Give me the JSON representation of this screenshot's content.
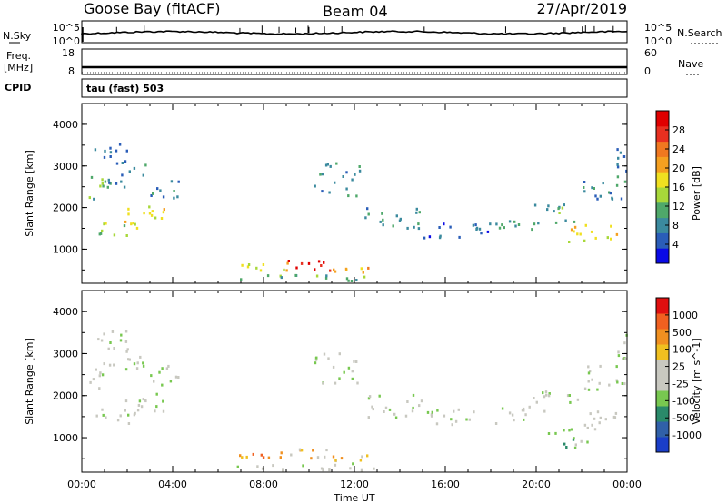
{
  "header": {
    "station": "Goose Bay (fitACF)",
    "beam": "Beam 04",
    "date": "27/Apr/2019"
  },
  "noise_panel": {
    "left_label": "N.Sky",
    "right_label": "N.Search",
    "left_ticks": [
      "10^5",
      "10^0"
    ],
    "right_ticks": [
      "10^5",
      "10^0"
    ]
  },
  "freq_panel": {
    "left_label_line1": "Freq.",
    "left_label_line2": "[MHz]",
    "right_label": "Nave",
    "left_ticks": [
      "18",
      "8"
    ],
    "right_ticks": [
      "60",
      "0"
    ]
  },
  "cpid": {
    "label": "CPID",
    "value": "tau (fast) 503"
  },
  "time_axis": {
    "title": "Time UT",
    "ticks": [
      "00:00",
      "04:00",
      "08:00",
      "12:00",
      "16:00",
      "20:00",
      "00:00"
    ]
  },
  "chart_data": [
    {
      "type": "heatmap",
      "title": "",
      "parameter": "Power",
      "ylabel": "Slant Range [km]",
      "yticks": [
        "1000",
        "2000",
        "3000",
        "4000"
      ],
      "ylim_km": [
        180,
        4500
      ],
      "xlim_hours": [
        0,
        24
      ],
      "colorbar": {
        "label": "Power [dB]",
        "ticks": [
          "4",
          "8",
          "12",
          "16",
          "20",
          "24",
          "28"
        ],
        "colors": [
          "#0a0ae6",
          "#2a5db8",
          "#3b8a9e",
          "#4fa86a",
          "#a8d83a",
          "#f0e020",
          "#f5a020",
          "#f07820",
          "#e83020",
          "#e00000"
        ]
      },
      "regions": [
        {
          "t": [
            0.3,
            2.5
          ],
          "r": [
            1350,
            1700
          ],
          "level": 4
        },
        {
          "t": [
            1.8,
            3.6
          ],
          "r": [
            1550,
            2100
          ],
          "level": 5
        },
        {
          "t": [
            0.3,
            1.0
          ],
          "r": [
            2200,
            2900
          ],
          "level": 3
        },
        {
          "t": [
            1.0,
            2.8
          ],
          "r": [
            2500,
            3200
          ],
          "level": 2
        },
        {
          "t": [
            3.0,
            4.3
          ],
          "r": [
            2250,
            2750
          ],
          "level": 2
        },
        {
          "t": [
            0.5,
            2.0
          ],
          "r": [
            3200,
            3600
          ],
          "level": 1
        },
        {
          "t": [
            7.0,
            9.2
          ],
          "r": [
            470,
            700
          ],
          "level": 5
        },
        {
          "t": [
            9.0,
            11.0
          ],
          "r": [
            470,
            760
          ],
          "level": 9
        },
        {
          "t": [
            11.0,
            12.6
          ],
          "r": [
            470,
            650
          ],
          "level": 6
        },
        {
          "t": [
            6.8,
            13.0
          ],
          "r": [
            250,
            420
          ],
          "level": 3
        },
        {
          "t": [
            10.2,
            12.2
          ],
          "r": [
            2300,
            3100
          ],
          "level": 2
        },
        {
          "t": [
            12.2,
            15.0
          ],
          "r": [
            1500,
            2050
          ],
          "level": 2
        },
        {
          "t": [
            15.0,
            18.2
          ],
          "r": [
            1300,
            1700
          ],
          "level": 1
        },
        {
          "t": [
            18.0,
            20.0
          ],
          "r": [
            1450,
            1800
          ],
          "level": 3
        },
        {
          "t": [
            19.8,
            21.8
          ],
          "r": [
            1650,
            2150
          ],
          "level": 3
        },
        {
          "t": [
            21.4,
            23.9
          ],
          "r": [
            1200,
            1650
          ],
          "level": 5
        },
        {
          "t": [
            22.0,
            24.0
          ],
          "r": [
            2100,
            2800
          ],
          "level": 2
        },
        {
          "t": [
            23.5,
            24.0
          ],
          "r": [
            2900,
            3500
          ],
          "level": 2
        }
      ]
    },
    {
      "type": "heatmap",
      "title": "",
      "parameter": "Velocity",
      "ylabel": "Slant Range [km]",
      "yticks": [
        "1000",
        "2000",
        "3000",
        "4000"
      ],
      "ylim_km": [
        180,
        4500
      ],
      "xlim_hours": [
        0,
        24
      ],
      "colorbar": {
        "label": "Velocity [m s^-1]",
        "ticks": [
          "1000",
          "500",
          "100",
          "25",
          "-25",
          "-100",
          "-500",
          "-1000"
        ],
        "colors": [
          "#1a3ec8",
          "#3060a8",
          "#2a8a6a",
          "#78c850",
          "#c8c8c0",
          "#c8c8c0",
          "#f0c020",
          "#f09020",
          "#f06020",
          "#e01010"
        ]
      },
      "regions": [
        {
          "t": [
            0.3,
            2.5
          ],
          "r": [
            1350,
            1700
          ],
          "level": 4
        },
        {
          "t": [
            1.8,
            3.6
          ],
          "r": [
            1550,
            2100
          ],
          "level": 4
        },
        {
          "t": [
            0.3,
            1.0
          ],
          "r": [
            2200,
            2900
          ],
          "level": 4
        },
        {
          "t": [
            1.0,
            2.8
          ],
          "r": [
            2500,
            3200
          ],
          "level": 4
        },
        {
          "t": [
            3.0,
            4.3
          ],
          "r": [
            2250,
            2750
          ],
          "level": 4
        },
        {
          "t": [
            0.5,
            2.0
          ],
          "r": [
            3200,
            3600
          ],
          "level": 4
        },
        {
          "t": [
            6.8,
            9.2
          ],
          "r": [
            470,
            700
          ],
          "level": 7
        },
        {
          "t": [
            9.0,
            11.0
          ],
          "r": [
            470,
            760
          ],
          "level": 6
        },
        {
          "t": [
            11.0,
            12.6
          ],
          "r": [
            470,
            650
          ],
          "level": 6
        },
        {
          "t": [
            6.8,
            13.0
          ],
          "r": [
            250,
            420
          ],
          "level": 4
        },
        {
          "t": [
            10.2,
            12.2
          ],
          "r": [
            2300,
            3100
          ],
          "level": 4
        },
        {
          "t": [
            12.2,
            15.0
          ],
          "r": [
            1500,
            2050
          ],
          "level": 4
        },
        {
          "t": [
            15.0,
            18.2
          ],
          "r": [
            1300,
            1700
          ],
          "level": 4
        },
        {
          "t": [
            18.0,
            20.0
          ],
          "r": [
            1450,
            1800
          ],
          "level": 4
        },
        {
          "t": [
            19.8,
            21.8
          ],
          "r": [
            1650,
            2150
          ],
          "level": 4
        },
        {
          "t": [
            21.4,
            23.9
          ],
          "r": [
            1200,
            1650
          ],
          "level": 4
        },
        {
          "t": [
            20.5,
            22.3
          ],
          "r": [
            750,
            1250
          ],
          "level": 3
        },
        {
          "t": [
            22.0,
            24.0
          ],
          "r": [
            2100,
            2800
          ],
          "level": 4
        },
        {
          "t": [
            23.5,
            24.0
          ],
          "r": [
            2900,
            3500
          ],
          "level": 4
        }
      ]
    }
  ]
}
